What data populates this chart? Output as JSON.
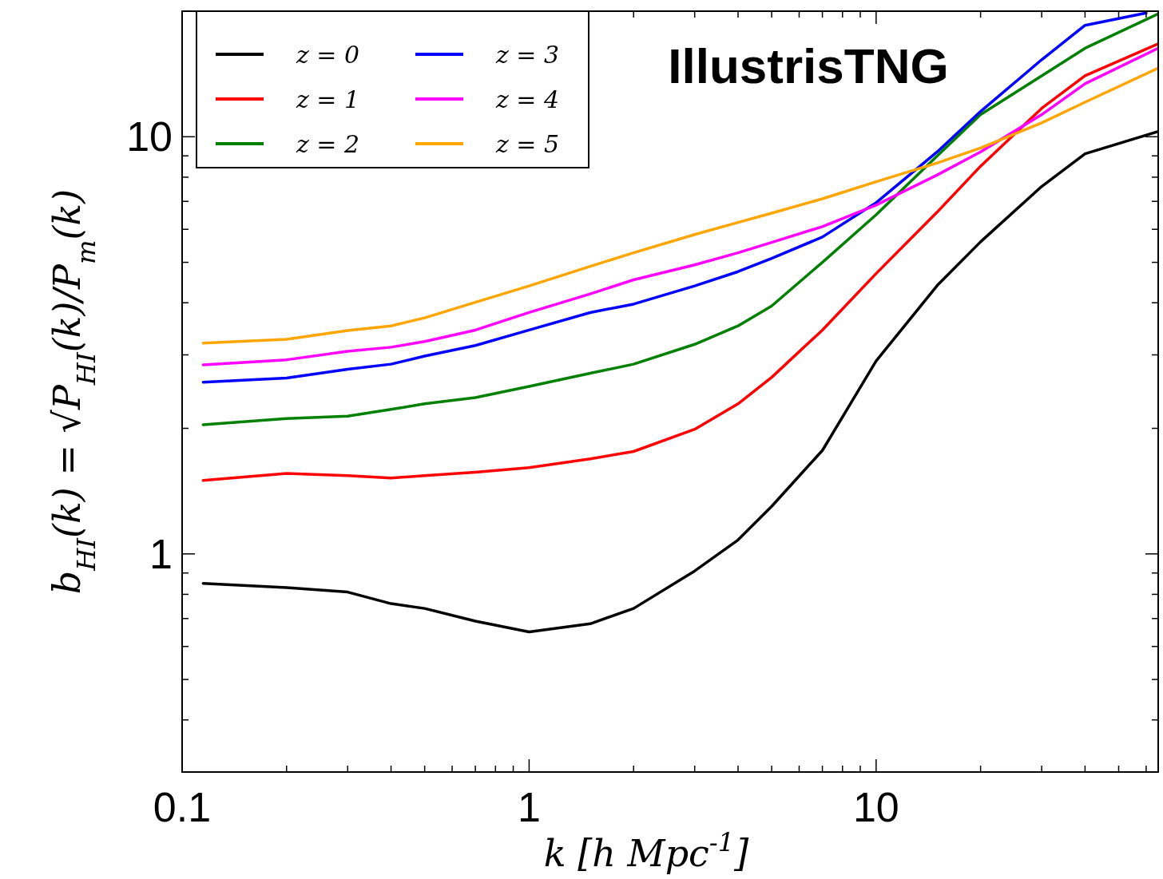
{
  "chart_data": {
    "type": "line",
    "xlabel": "k [h Mpc$^{-1}$]",
    "ylabel": "b$_{HI}$(k) = √P$_{HI}$(k)/P$_{m}$(k)",
    "annotations": [
      "IllustrisTNG"
    ],
    "log": "xy",
    "grid": false,
    "legend": "top left",
    "line_style": "solid",
    "marker": "none",
    "xlim": [
      0.1,
      65
    ],
    "ylim": [
      0.3,
      20
    ],
    "xticks": [
      0.1,
      {
        "value": 0.2,
        "label": null
      },
      {
        "value": 0.3,
        "label": null
      },
      {
        "value": 0.4,
        "label": null
      },
      {
        "value": 0.5,
        "label": null
      },
      {
        "value": 0.6,
        "label": null
      },
      {
        "value": 0.7,
        "label": null
      },
      {
        "value": 0.8,
        "label": null
      },
      {
        "value": 0.9,
        "label": null
      },
      1,
      {
        "value": 2,
        "label": null
      },
      {
        "value": 3,
        "label": null
      },
      {
        "value": 4,
        "label": null
      },
      {
        "value": 5,
        "label": null
      },
      {
        "value": 6,
        "label": null
      },
      {
        "value": 7,
        "label": null
      },
      {
        "value": 8,
        "label": null
      },
      {
        "value": 9,
        "label": null
      },
      10,
      {
        "value": 20,
        "label": null
      },
      {
        "value": 30,
        "label": null
      },
      {
        "value": 40,
        "label": null
      },
      {
        "value": 50,
        "label": null
      },
      {
        "value": 60,
        "label": null
      }
    ],
    "yticks": [
      {
        "value": 0.3,
        "label": null
      },
      {
        "value": 0.4,
        "label": null
      },
      {
        "value": 0.5,
        "label": null
      },
      {
        "value": 0.6,
        "label": null
      },
      {
        "value": 0.7,
        "label": null
      },
      {
        "value": 0.8,
        "label": null
      },
      {
        "value": 0.9,
        "label": null
      },
      1,
      {
        "value": 2,
        "label": null
      },
      {
        "value": 3,
        "label": null
      },
      {
        "value": 4,
        "label": null
      },
      {
        "value": 5,
        "label": null
      },
      {
        "value": 6,
        "label": null
      },
      {
        "value": 7,
        "label": null
      },
      {
        "value": 8,
        "label": null
      },
      {
        "value": 9,
        "label": null
      },
      10,
      {
        "value": 20,
        "label": null
      }
    ],
    "x": [
      0.115,
      0.2,
      0.3,
      0.4,
      0.5,
      0.7,
      1,
      1.5,
      2,
      3,
      4,
      5,
      7,
      10,
      15,
      20,
      30,
      40,
      65
    ],
    "series": [
      {
        "name": "z = 0",
        "color": "#000000",
        "values": [
          0.85,
          0.83,
          0.81,
          0.76,
          0.74,
          0.69,
          0.65,
          0.68,
          0.74,
          0.91,
          1.08,
          1.3,
          1.77,
          2.9,
          4.4,
          5.6,
          7.6,
          9.1,
          10.3
        ]
      },
      {
        "name": "z = 1",
        "color": "#ff0000",
        "values": [
          1.5,
          1.56,
          1.54,
          1.52,
          1.54,
          1.57,
          1.61,
          1.69,
          1.76,
          1.99,
          2.29,
          2.65,
          3.44,
          4.7,
          6.6,
          8.5,
          11.7,
          14,
          16.7
        ]
      },
      {
        "name": "z = 2",
        "color": "#008000",
        "values": [
          2.04,
          2.11,
          2.14,
          2.22,
          2.29,
          2.37,
          2.52,
          2.71,
          2.85,
          3.18,
          3.52,
          3.93,
          5,
          6.5,
          9,
          11.3,
          14,
          16.3,
          19.7
        ]
      },
      {
        "name": "z = 3",
        "color": "#0000ff",
        "x": [
          0.115,
          0.2,
          0.3,
          0.4,
          0.5,
          0.7,
          1,
          1.5,
          2,
          3,
          4,
          5,
          7,
          10,
          15,
          20,
          30,
          40,
          60
        ],
        "values": [
          2.58,
          2.64,
          2.77,
          2.85,
          2.98,
          3.16,
          3.44,
          3.79,
          3.97,
          4.39,
          4.75,
          5.11,
          5.75,
          6.95,
          9.2,
          11.5,
          15.3,
          18.5,
          19.8
        ]
      },
      {
        "name": "z = 4",
        "color": "#ff00ff",
        "values": [
          2.84,
          2.92,
          3.06,
          3.13,
          3.23,
          3.44,
          3.79,
          4.2,
          4.54,
          4.93,
          5.27,
          5.58,
          6.09,
          6.86,
          8.1,
          9.2,
          11.3,
          13.4,
          16.3
        ]
      },
      {
        "name": "z = 5",
        "color": "#ffa500",
        "values": [
          3.2,
          3.27,
          3.43,
          3.52,
          3.68,
          4.01,
          4.39,
          4.89,
          5.27,
          5.83,
          6.23,
          6.56,
          7.1,
          7.8,
          8.65,
          9.4,
          10.8,
          12.1,
          14.6
        ]
      }
    ]
  }
}
